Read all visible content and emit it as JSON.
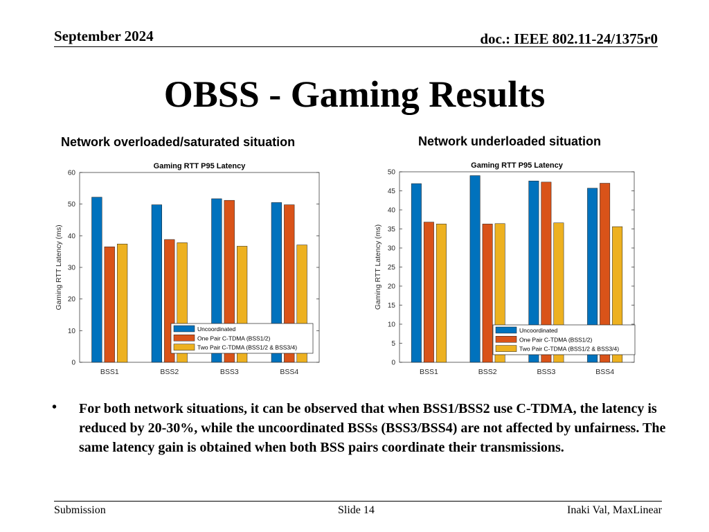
{
  "header": {
    "date": "September 2024",
    "doc": "doc.: IEEE 802.11-24/1375r0"
  },
  "slide": {
    "title": "OBSS - Gaming Results",
    "subtitle_left": "Network overloaded/saturated situation",
    "subtitle_right": "Network underloaded situation",
    "bullet_symbol": "•",
    "bullet_text": "For both network situations, it can be observed that when BSS1/BSS2 use C-TDMA, the latency is reduced by 20-30%, while the uncoordinated BSSs (BSS3/BSS4) are not affected by unfairness. The same latency gain is obtained when both BSS pairs coordinate their transmissions."
  },
  "footer": {
    "left": "Submission",
    "center": "Slide 14",
    "right": "Inaki Val, MaxLinear"
  },
  "colors": {
    "series": [
      "#0072BD",
      "#D95319",
      "#EDB120"
    ]
  },
  "chart_data": [
    {
      "type": "bar",
      "title": "Gaming RTT P95 Latency",
      "xlabel": "",
      "ylabel": "Gaming RTT Latency (ms)",
      "categories": [
        "BSS1",
        "BSS2",
        "BSS3",
        "BSS4"
      ],
      "ylim": [
        0,
        60
      ],
      "yticks": [
        0,
        10,
        20,
        30,
        40,
        50,
        60
      ],
      "legend_position": "bottom-right",
      "series": [
        {
          "name": "Uncoordinated",
          "values": [
            52.2,
            49.8,
            51.7,
            50.5
          ]
        },
        {
          "name": "One Pair C-TDMA (BSS1/2)",
          "values": [
            36.5,
            38.8,
            51.2,
            49.8
          ]
        },
        {
          "name": "Two Pair C-TDMA (BSS1/2 & BSS3/4)",
          "values": [
            37.4,
            37.8,
            36.7,
            37.1
          ]
        }
      ]
    },
    {
      "type": "bar",
      "title": "Gaming RTT P95 Latency",
      "xlabel": "",
      "ylabel": "Gaming RTT Latency (ms)",
      "categories": [
        "BSS1",
        "BSS2",
        "BSS3",
        "BSS4"
      ],
      "ylim": [
        0,
        50
      ],
      "yticks": [
        0,
        5,
        10,
        15,
        20,
        25,
        30,
        35,
        40,
        45,
        50
      ],
      "legend_position": "bottom-right",
      "series": [
        {
          "name": "Uncoordinated",
          "values": [
            46.9,
            49.0,
            47.6,
            45.7
          ]
        },
        {
          "name": "One Pair C-TDMA (BSS1/2)",
          "values": [
            36.8,
            36.3,
            47.3,
            47.0
          ]
        },
        {
          "name": "Two Pair C-TDMA (BSS1/2 & BSS3/4)",
          "values": [
            36.3,
            36.4,
            36.6,
            35.6
          ]
        }
      ]
    }
  ]
}
